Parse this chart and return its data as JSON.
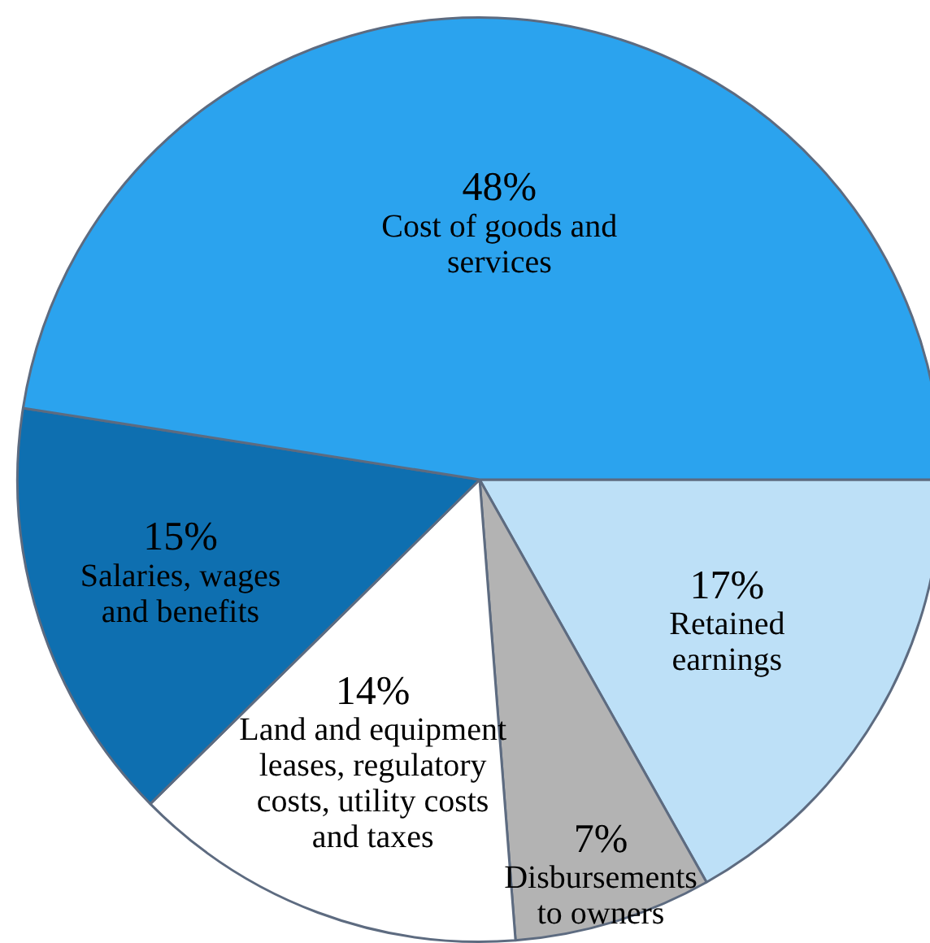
{
  "chart_data": {
    "type": "pie",
    "categories": [
      "Retained\nearnings",
      "Disbursements\nto owners",
      "Land and equipment\nleases, regulatory\ncosts, utility costs\nand taxes",
      "Salaries, wages\nand benefits",
      "Cost of goods and\nservices"
    ],
    "values": [
      17,
      7,
      14,
      15,
      48
    ],
    "value_labels": [
      "17%",
      "7%",
      "14%",
      "15%",
      "48%"
    ],
    "colors": [
      "#bde0f7",
      "#b3b3b3",
      "#ffffff",
      "#0e6fb0",
      "#2ba3ee"
    ],
    "legend": false
  }
}
